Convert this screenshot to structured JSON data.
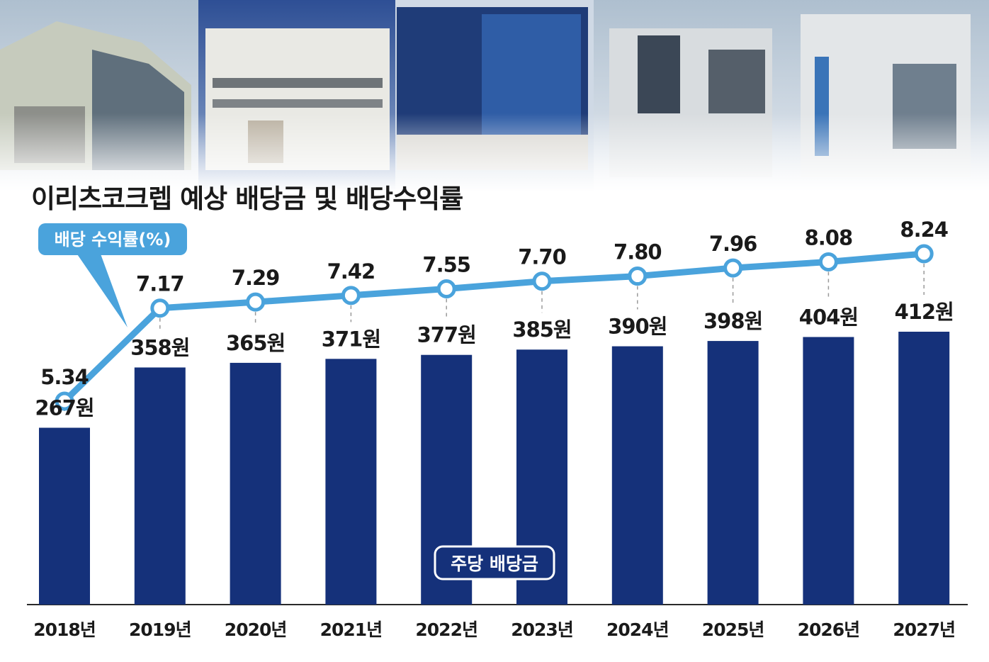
{
  "header": {
    "title": "이리츠코크렙 예상 배당금 및 배당수익률"
  },
  "colors": {
    "bar": "#15317a",
    "line": "#4aa3dc",
    "text": "#1a1a1a",
    "sky": "#c7d2df"
  },
  "chart_data": {
    "type": "bar",
    "categories": [
      "2018년",
      "2019년",
      "2020년",
      "2021년",
      "2022년",
      "2023년",
      "2024년",
      "2025년",
      "2026년",
      "2027년"
    ],
    "series": [
      {
        "name": "주당 배당금",
        "type": "bar",
        "values": [
          267,
          358,
          365,
          371,
          377,
          385,
          390,
          398,
          404,
          412
        ],
        "labels": [
          "267원",
          "358원",
          "365원",
          "371원",
          "377원",
          "385원",
          "390원",
          "398원",
          "404원",
          "412원"
        ]
      },
      {
        "name": "배당 수익률(%)",
        "type": "line",
        "values": [
          5.34,
          7.17,
          7.29,
          7.42,
          7.55,
          7.7,
          7.8,
          7.96,
          8.08,
          8.24
        ],
        "labels": [
          "5.34",
          "7.17",
          "7.29",
          "7.42",
          "7.55",
          "7.70",
          "7.80",
          "7.96",
          "8.08",
          "8.24"
        ]
      }
    ],
    "title": "이리츠코크렙 예상 배당금 및 배당수익률",
    "xlabel": "",
    "ylabel": "",
    "grid": false
  }
}
